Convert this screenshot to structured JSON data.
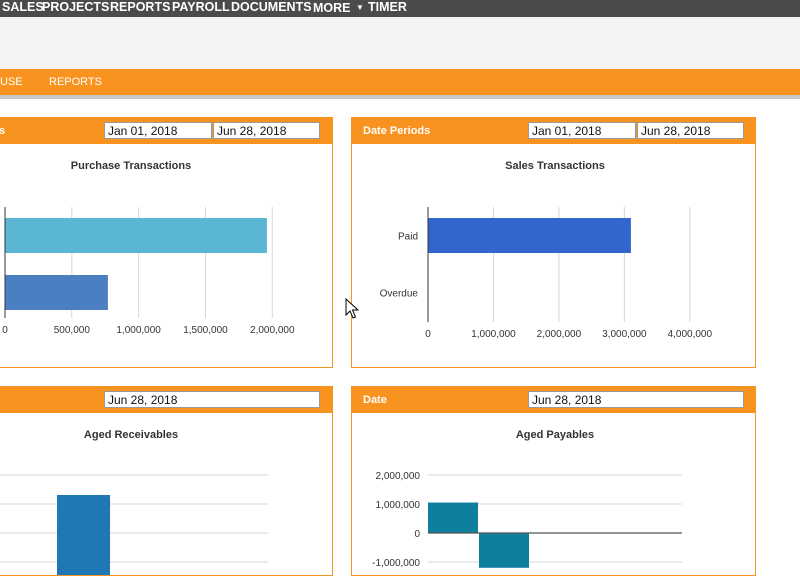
{
  "topnav": {
    "items": [
      "SALES",
      "PROJECTS",
      "REPORTS",
      "PAYROLL",
      "DOCUMENTS",
      "MORE",
      "TIMER"
    ]
  },
  "subnav": {
    "items": [
      "USE",
      "REPORTS"
    ]
  },
  "panels": {
    "purchase": {
      "header": "s",
      "date_from": "Jan 01, 2018",
      "date_to": "Jun 28, 2018"
    },
    "sales": {
      "header": "Date Periods",
      "date_from": "Jan 01, 2018",
      "date_to": "Jun 28, 2018"
    },
    "receivables": {
      "date": "Jun 28, 2018"
    },
    "payables": {
      "header": "Date",
      "date": "Jun 28, 2018"
    }
  },
  "colors": {
    "nav": "#4b4b4b",
    "accent": "#f7931e",
    "subheader": "#f4f4f4"
  },
  "chart_data": [
    {
      "type": "bar",
      "orientation": "horizontal",
      "title": "Purchase Transactions",
      "values": [
        1960000,
        770000
      ],
      "bar_colors": [
        "#5bb6d3",
        "#4a7fc2"
      ],
      "xlim": [
        0,
        2200000
      ],
      "xticks": [
        "0",
        "500,000",
        "1,000,000",
        "1,500,000",
        "2,000,000"
      ],
      "xtick_values": [
        0,
        500000,
        1000000,
        1500000,
        2000000
      ]
    },
    {
      "type": "bar",
      "orientation": "horizontal",
      "title": "Sales Transactions",
      "categories": [
        "Paid",
        "Overdue"
      ],
      "values": [
        3100000,
        0
      ],
      "bar_colors": [
        "#3366cc",
        "#3366cc"
      ],
      "xlim": [
        0,
        4400000
      ],
      "xticks": [
        "0",
        "1,000,000",
        "2,000,000",
        "3,000,000",
        "4,000,000"
      ],
      "xtick_values": [
        0,
        1000000,
        2000000,
        3000000,
        4000000
      ]
    },
    {
      "type": "bar",
      "title": "Aged Receivables",
      "bar_colors": [
        "#1f77b4"
      ]
    },
    {
      "type": "bar",
      "title": "Aged Payables",
      "values": [
        1050000,
        -1200000
      ],
      "bar_colors": [
        "#0f7f9e",
        "#0f7f9e"
      ],
      "yticks": [
        "2,000,000",
        "1,000,000",
        "0",
        "-1,000,000"
      ],
      "ytick_values": [
        2000000,
        1000000,
        0,
        -1000000
      ]
    }
  ]
}
